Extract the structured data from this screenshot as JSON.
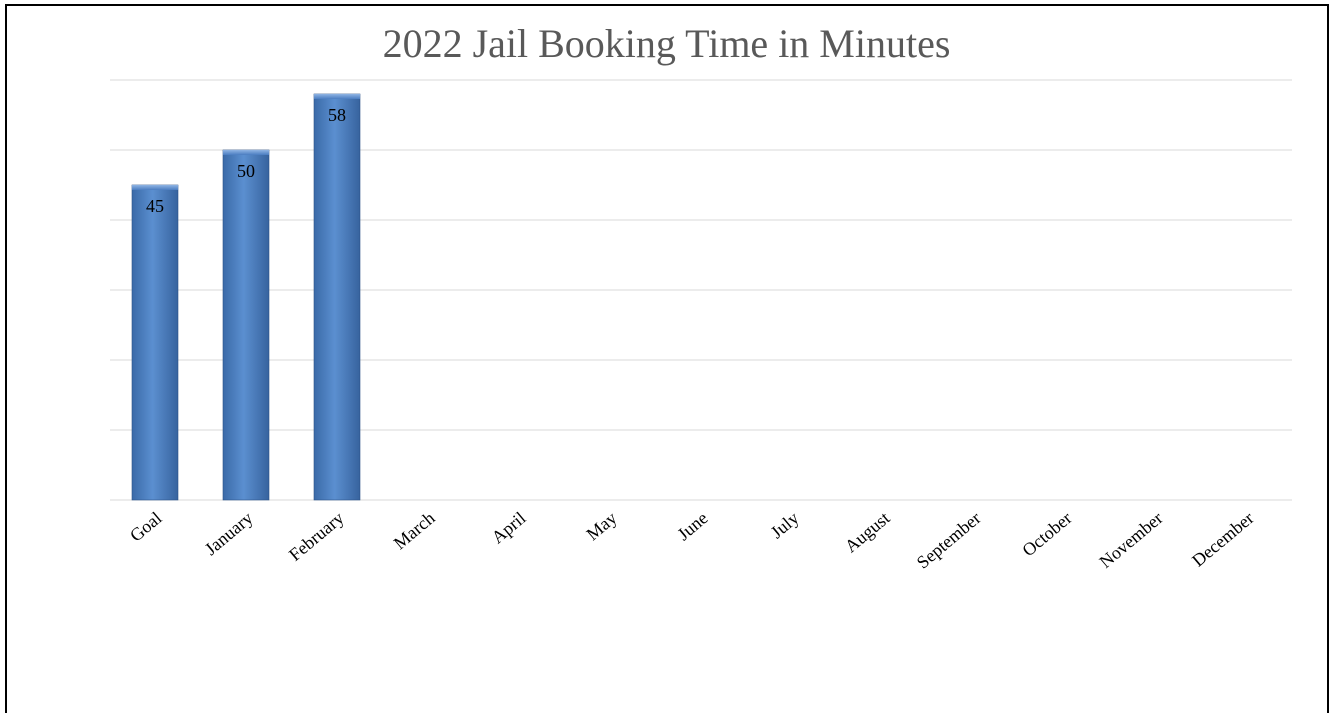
{
  "chart_data": {
    "type": "bar",
    "title": "2022 Jail Booking Time in Minutes",
    "categories": [
      "Goal",
      "January",
      "February",
      "March",
      "April",
      "May",
      "June",
      "July",
      "August",
      "September",
      "October",
      "November",
      "December"
    ],
    "values": [
      45,
      50,
      58,
      null,
      null,
      null,
      null,
      null,
      null,
      null,
      null,
      null,
      null
    ],
    "data_labels": [
      "45",
      "50",
      "58",
      "",
      "",
      "",
      "",
      "",
      "",
      "",
      "",
      "",
      ""
    ],
    "ylim": [
      0,
      60
    ],
    "grid": true,
    "bar_color": "#4f81bd",
    "grid_color": "#d9d9d9",
    "legend": "none"
  }
}
